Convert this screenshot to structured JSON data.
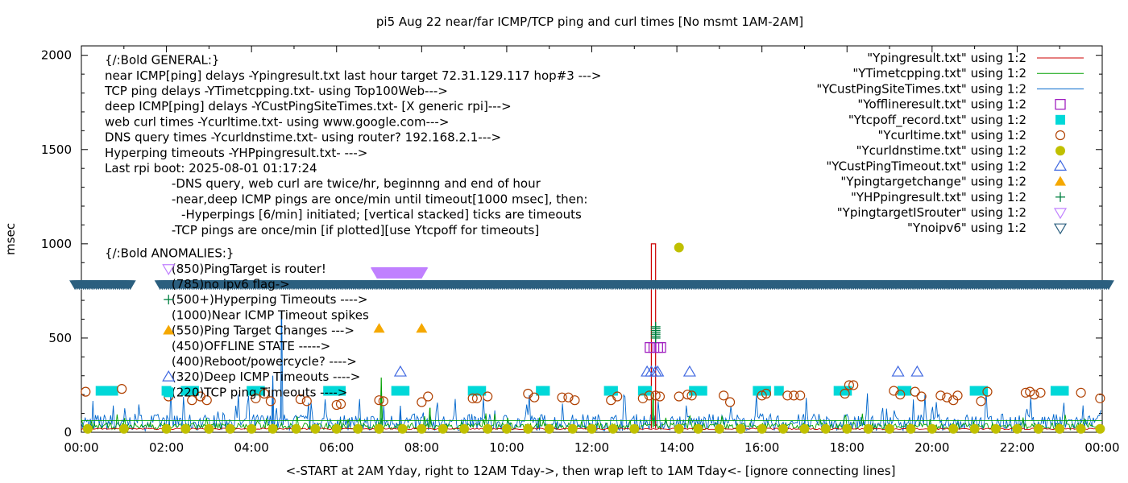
{
  "chart_data": {
    "type": "line",
    "title": "pi5 Aug 22  near/far ICMP/TCP ping and curl times [No msmt 1AM-2AM]",
    "xlabel": "<-START at 2AM Yday, right to 12AM Tday->, then wrap left to 1AM Tday<- [ignore connecting lines]",
    "ylabel": "msec",
    "xlim": [
      0,
      24
    ],
    "ylim": [
      0,
      2050
    ],
    "x_ticks": [
      "00:00",
      "02:00",
      "04:00",
      "06:00",
      "08:00",
      "10:00",
      "12:00",
      "14:00",
      "16:00",
      "18:00",
      "20:00",
      "22:00",
      "00:00"
    ],
    "y_ticks": [
      "0",
      "500",
      "1000",
      "1500",
      "2000"
    ],
    "legend_position": "top-right",
    "colors": {
      "ping": "#cc0000",
      "tcp": "#00a000",
      "custping": "#0066cc",
      "offline": "#a020c0",
      "tcpoff": "#00d8d8",
      "curl": "#b04000",
      "dns": "#c0c000",
      "custtimeout": "#4169e1",
      "targetchange": "#f5a800",
      "hyper": "#008040",
      "router": "#c080ff",
      "noipv6": "#2b5f7f"
    },
    "legend": [
      {
        "name": "\"Ypingresult.txt\" using 1:2",
        "style": "line",
        "color": "#cc0000"
      },
      {
        "name": "\"YTimetcpping.txt\" using 1:2",
        "style": "line",
        "color": "#00a000"
      },
      {
        "name": "\"YCustPingSiteTimes.txt\" using 1:2",
        "style": "line",
        "color": "#0066cc"
      },
      {
        "name": "\"Yofflineresult.txt\" using 1:2",
        "style": "open-square",
        "color": "#a020c0"
      },
      {
        "name": "\"Ytcpoff_record.txt\" using 1:2",
        "style": "filled-square",
        "color": "#00d8d8"
      },
      {
        "name": "\"Ycurltime.txt\" using 1:2",
        "style": "open-circle",
        "color": "#b04000"
      },
      {
        "name": "\"Ycurldnstime.txt\" using 1:2",
        "style": "filled-circle",
        "color": "#c0c000"
      },
      {
        "name": "\"YCustPingTimeout.txt\" using 1:2",
        "style": "open-triangle-up",
        "color": "#4169e1"
      },
      {
        "name": "\"Ypingtargetchange\" using 1:2",
        "style": "filled-triangle-up",
        "color": "#f5a800"
      },
      {
        "name": "\"YHPpingresult.txt\" using 1:2",
        "style": "plus",
        "color": "#008040"
      },
      {
        "name": "\"YpingtargetISrouter\" using 1:2",
        "style": "open-triangle-down",
        "color": "#c080ff"
      },
      {
        "name": "\"Ynoipv6\" using 1:2",
        "style": "open-triangle-down",
        "color": "#2b5f7f"
      }
    ],
    "annotations": [
      {
        "x": 0.55,
        "y": 1975,
        "text": "{/:Bold GENERAL:}"
      },
      {
        "x": 0.55,
        "y": 1893,
        "text": "near ICMP[ping] delays -Ypingresult.txt last hour target 72.31.129.117 hop#3 --->"
      },
      {
        "x": 0.55,
        "y": 1811,
        "text": "TCP ping delays -YTimetcpping.txt- using Top100Web--->"
      },
      {
        "x": 0.55,
        "y": 1729,
        "text": "deep ICMP[ping] delays -YCustPingSiteTimes.txt- [X generic rpi]--->"
      },
      {
        "x": 0.55,
        "y": 1647,
        "text": "web curl times -Ycurltime.txt- using www.google.com--->"
      },
      {
        "x": 0.55,
        "y": 1565,
        "text": "DNS query times -Ycurldnstime.txt- using router? 192.168.2.1--->"
      },
      {
        "x": 0.55,
        "y": 1483,
        "text": "Hyperping timeouts -YHPpingresult.txt- --->"
      },
      {
        "x": 0.55,
        "y": 1401,
        "text": "Last rpi boot: 2025-08-01 01:17:24"
      },
      {
        "x": 2.12,
        "y": 1319,
        "text": "-DNS query, web curl are twice/hr, beginnng and end of hour"
      },
      {
        "x": 2.12,
        "y": 1237,
        "text": "-near,deep ICMP pings are once/min until timeout[1000 msec], then:"
      },
      {
        "x": 2.35,
        "y": 1155,
        "text": "-Hyperpings [6/min] initiated; [vertical stacked] ticks are timeouts"
      },
      {
        "x": 2.12,
        "y": 1073,
        "text": "-TCP pings are once/min [if plotted][use Ytcpoff for timeouts]"
      },
      {
        "x": 0.55,
        "y": 950,
        "text": "{/:Bold ANOMALIES:}"
      },
      {
        "x": 2.12,
        "y": 868,
        "text": "(850)PingTarget is router!"
      },
      {
        "x": 2.12,
        "y": 786,
        "text": "(785)no ipv6 flag->"
      },
      {
        "x": 2.12,
        "y": 704,
        "text": "(500+)Hyperping Timeouts ---->"
      },
      {
        "x": 2.12,
        "y": 622,
        "text": "(1000)Near ICMP Timeout spikes"
      },
      {
        "x": 2.12,
        "y": 540,
        "text": "(550)Ping Target Changes --->"
      },
      {
        "x": 2.12,
        "y": 458,
        "text": "(450)OFFLINE STATE ----->"
      },
      {
        "x": 2.12,
        "y": 376,
        "text": "(400)Reboot/powercycle? ---->"
      },
      {
        "x": 2.12,
        "y": 294,
        "text": "(320)Deep ICMP Timeouts ---->"
      },
      {
        "x": 2.12,
        "y": 212,
        "text": "(220)TCP ping Timeouts ---->"
      }
    ],
    "series": [
      {
        "name": "\"Ypingresult.txt\" using 1:2",
        "kind": "line",
        "baseline": 14,
        "spikes": [
          {
            "x": 13.4,
            "y": 1000
          },
          {
            "x": 13.5,
            "y": 1000
          }
        ]
      },
      {
        "name": "\"YTimetcpping.txt\" using 1:2",
        "kind": "line",
        "baseline": 25,
        "spikes": [
          {
            "x": 7.05,
            "y": 290
          },
          {
            "x": 8.2,
            "y": 130
          },
          {
            "x": 13.45,
            "y": 210
          }
        ]
      },
      {
        "name": "\"YCustPingSiteTimes.txt\" using 1:2",
        "kind": "line",
        "baseline": 35,
        "spikes": [
          {
            "x": 4.7,
            "y": 640
          },
          {
            "x": 4.5,
            "y": 300
          },
          {
            "x": 7.5,
            "y": 140
          }
        ]
      },
      {
        "name": "\"Yofflineresult.txt\" using 1:2",
        "kind": "points",
        "x": [
          13.37,
          13.46,
          13.55,
          13.62
        ],
        "y": [
          450,
          450,
          450,
          450
        ]
      },
      {
        "name": "\"Ytcpoff_record.txt\" using 1:2",
        "kind": "points",
        "y_const": 220,
        "x": [
          0.45,
          0.55,
          0.65,
          0.75,
          2.0,
          2.45,
          2.55,
          2.65,
          4.0,
          4.1,
          4.2,
          5.8,
          5.9,
          6.0,
          6.1,
          7.4,
          7.5,
          7.6,
          9.2,
          9.3,
          9.4,
          10.8,
          10.9,
          12.4,
          12.5,
          13.2,
          13.3,
          14.4,
          14.5,
          14.6,
          15.9,
          16.0,
          16.1,
          16.4,
          17.8,
          17.9,
          18.0,
          19.3,
          19.4,
          21.0,
          21.1,
          21.2,
          22.9,
          23.0,
          23.1
        ]
      },
      {
        "name": "\"Ycurltime.txt\" using 1:2",
        "kind": "points",
        "x": [
          0.1,
          0.95,
          2.05,
          2.6,
          2.8,
          2.95,
          4.1,
          4.3,
          4.45,
          5.15,
          5.3,
          6.0,
          6.1,
          7.0,
          7.1,
          8.0,
          8.15,
          9.2,
          9.3,
          9.55,
          10.5,
          10.65,
          11.3,
          11.45,
          11.6,
          12.45,
          12.6,
          13.2,
          13.35,
          13.5,
          13.6,
          14.05,
          14.25,
          14.35,
          15.1,
          15.25,
          16.0,
          16.1,
          16.6,
          16.75,
          16.9,
          17.95,
          18.05,
          18.15,
          19.1,
          19.25,
          19.6,
          19.75,
          20.2,
          20.35,
          20.5,
          20.6,
          21.15,
          21.3,
          22.2,
          22.3,
          22.4,
          22.55,
          23.5,
          23.95
        ],
        "y": [
          215,
          230,
          190,
          170,
          190,
          170,
          180,
          205,
          165,
          175,
          165,
          145,
          150,
          170,
          165,
          160,
          190,
          180,
          180,
          190,
          205,
          185,
          185,
          185,
          170,
          170,
          190,
          180,
          195,
          195,
          190,
          190,
          200,
          195,
          195,
          160,
          195,
          205,
          195,
          195,
          195,
          205,
          250,
          250,
          220,
          200,
          215,
          190,
          195,
          185,
          170,
          195,
          165,
          215,
          210,
          215,
          200,
          210,
          210,
          180
        ]
      },
      {
        "name": "\"Ycurldnstime.txt\" using 1:2",
        "kind": "points",
        "y_const": 18,
        "extra": [
          {
            "x": 14.05,
            "y": 980
          }
        ],
        "x": [
          0.15,
          1.0,
          2.0,
          2.45,
          3.0,
          3.5,
          4.0,
          4.5,
          5.05,
          5.5,
          6.0,
          6.5,
          7.0,
          7.55,
          8.0,
          8.5,
          9.0,
          9.55,
          10.0,
          10.5,
          11.0,
          11.55,
          12.0,
          12.5,
          13.0,
          14.05,
          14.5,
          15.0,
          15.5,
          16.0,
          16.5,
          17.0,
          17.5,
          18.0,
          18.5,
          19.0,
          19.5,
          20.0,
          20.5,
          21.0,
          21.5,
          22.0,
          22.5,
          23.0,
          23.5,
          23.95
        ]
      },
      {
        "name": "\"YCustPingTimeout.txt\" using 1:2",
        "kind": "points",
        "x": [
          7.5,
          13.3,
          13.4,
          13.5,
          13.55,
          14.3,
          19.2,
          19.65
        ],
        "y": [
          320,
          320,
          320,
          320,
          320,
          320,
          320,
          320
        ]
      },
      {
        "name": "\"Ypingtargetchange\" using 1:2",
        "kind": "points",
        "x": [
          7.0,
          8.0
        ],
        "y": [
          550,
          550
        ]
      },
      {
        "name": "\"YHPpingresult.txt\" using 1:2",
        "kind": "points",
        "x": [
          13.5,
          13.5,
          13.5,
          13.5,
          13.5,
          13.5,
          13.5
        ],
        "y": [
          500,
          510,
          520,
          530,
          540,
          550,
          560
        ]
      },
      {
        "name": "\"YpingtargetISrouter\" using 1:2",
        "kind": "points",
        "x": [
          6.95,
          7.1,
          7.25,
          7.4,
          7.55,
          7.7,
          7.85,
          8.0
        ],
        "y": [
          850,
          850,
          850,
          850,
          850,
          850,
          850,
          850
        ]
      },
      {
        "name": "\"Ynoipv6\" using 1:2",
        "kind": "band",
        "y": 785,
        "segments": [
          [
            -0.15,
            1.2
          ],
          [
            1.85,
            24.2
          ]
        ]
      }
    ]
  }
}
